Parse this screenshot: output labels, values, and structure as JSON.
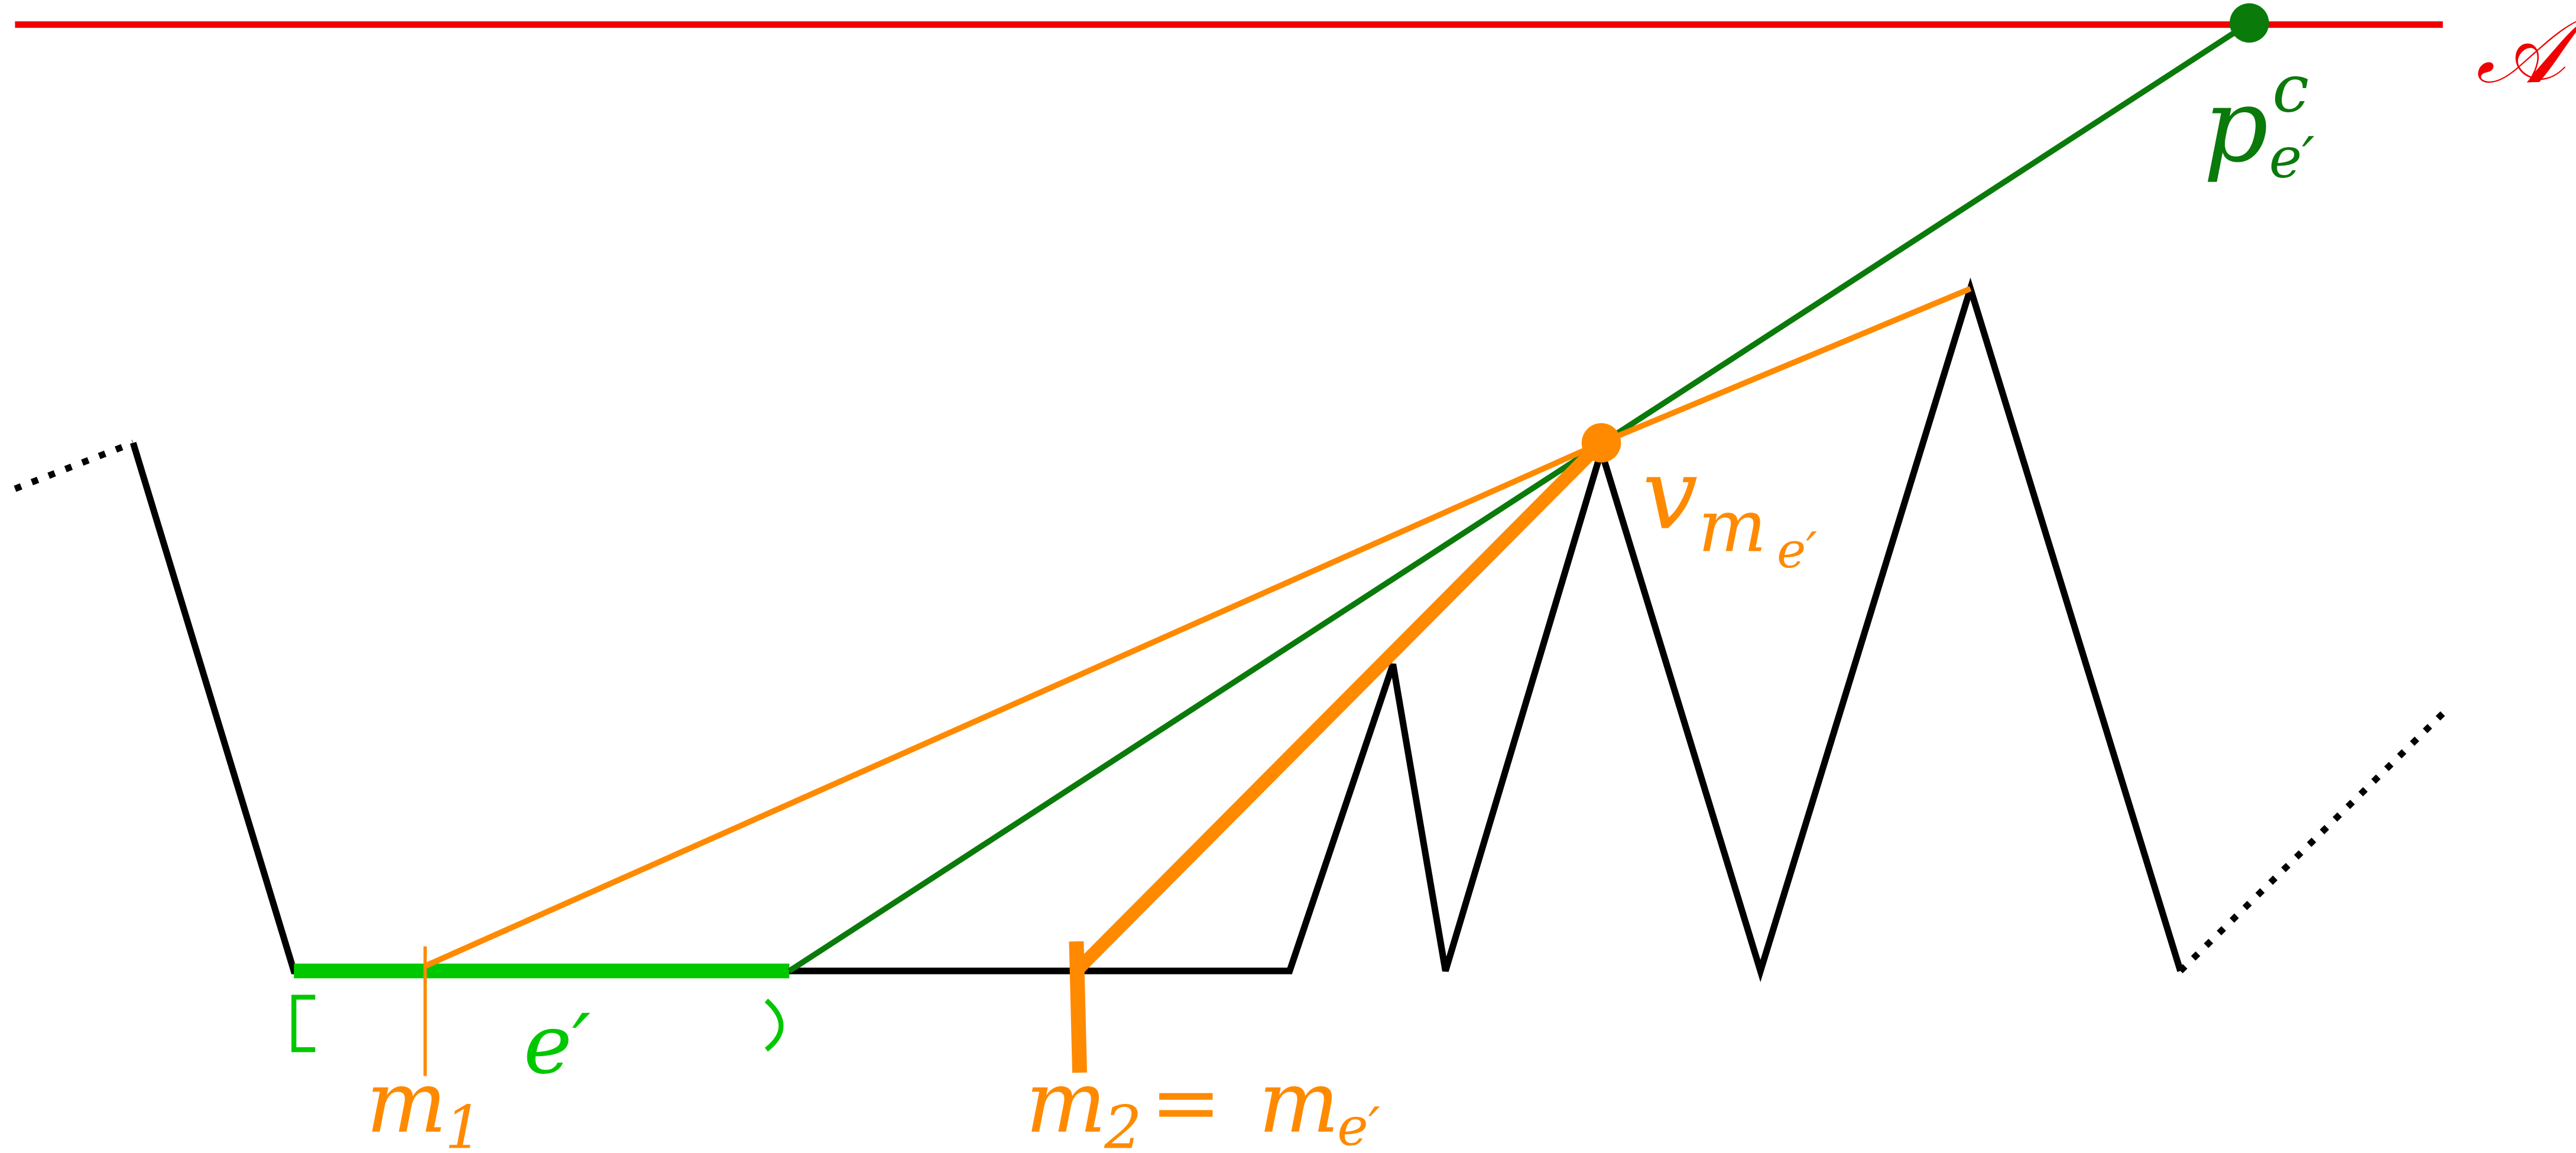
{
  "labels": {
    "line": "𝒜",
    "point": {
      "base": "p",
      "sup": "c",
      "sub": "e′"
    },
    "vertex": {
      "base": "v",
      "sub": "m",
      "subsub": "e′"
    },
    "edge": "e′",
    "m1": {
      "base": "m",
      "sub": "1"
    },
    "m2": {
      "base": "m",
      "sub": "2",
      "eq": "=",
      "rhs": "m",
      "rhs_sub": "e′"
    }
  }
}
